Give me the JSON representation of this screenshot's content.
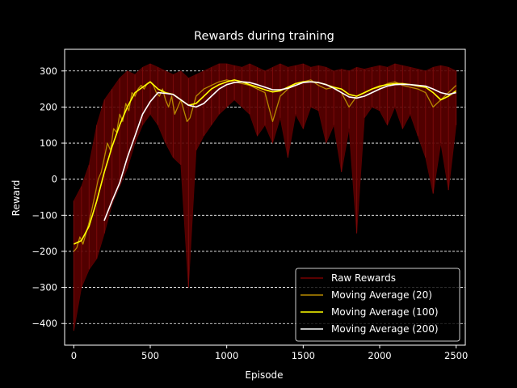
{
  "chart_data": {
    "type": "line",
    "title": "Rewards during training",
    "xlabel": "Episode",
    "ylabel": "Reward",
    "xlim": [
      -60,
      2560
    ],
    "ylim": [
      -460,
      360
    ],
    "x_ticks": [
      0,
      500,
      1000,
      1500,
      2000,
      2500
    ],
    "y_ticks": [
      -400,
      -300,
      -200,
      -100,
      0,
      100,
      200,
      300
    ],
    "grid": "horizontal-dashed",
    "legend_position": "lower-right",
    "colors": {
      "background": "#000000",
      "axes": "#ffffff",
      "raw": "#5a0000",
      "ma20": "#b88a00",
      "ma100": "#ffff00",
      "ma200": "#ffffff"
    },
    "series": [
      {
        "name": "Raw Rewards",
        "kind": "raw",
        "x": [
          0,
          50,
          100,
          150,
          200,
          250,
          300,
          350,
          400,
          450,
          500,
          550,
          600,
          650,
          700,
          750,
          800,
          850,
          900,
          950,
          1000,
          1050,
          1100,
          1150,
          1200,
          1250,
          1300,
          1350,
          1400,
          1450,
          1500,
          1550,
          1600,
          1650,
          1700,
          1750,
          1800,
          1850,
          1900,
          1950,
          2000,
          2050,
          2100,
          2150,
          2200,
          2250,
          2300,
          2350,
          2400,
          2450,
          2500
        ],
        "low": [
          -420,
          -300,
          -250,
          -220,
          -150,
          -70,
          -20,
          30,
          100,
          150,
          180,
          150,
          100,
          60,
          40,
          -300,
          80,
          120,
          150,
          180,
          200,
          220,
          200,
          180,
          120,
          150,
          100,
          170,
          60,
          180,
          140,
          200,
          190,
          100,
          150,
          20,
          140,
          -150,
          170,
          200,
          190,
          150,
          200,
          140,
          180,
          120,
          60,
          -40,
          100,
          -30,
          150
        ],
        "high": [
          -60,
          -20,
          40,
          150,
          220,
          250,
          280,
          300,
          290,
          310,
          320,
          310,
          300,
          290,
          300,
          280,
          290,
          300,
          310,
          320,
          320,
          315,
          310,
          320,
          310,
          300,
          310,
          320,
          310,
          315,
          320,
          310,
          315,
          310,
          300,
          305,
          300,
          310,
          305,
          310,
          315,
          310,
          320,
          315,
          310,
          305,
          300,
          310,
          315,
          310,
          300
        ]
      },
      {
        "name": "Moving Average (20)",
        "kind": "ma20",
        "x": [
          0,
          20,
          40,
          60,
          80,
          100,
          120,
          140,
          160,
          180,
          200,
          220,
          240,
          260,
          280,
          300,
          320,
          340,
          360,
          380,
          400,
          420,
          440,
          460,
          480,
          500,
          520,
          540,
          560,
          580,
          600,
          620,
          640,
          660,
          680,
          700,
          720,
          740,
          760,
          780,
          800,
          850,
          900,
          950,
          1000,
          1050,
          1100,
          1150,
          1200,
          1250,
          1300,
          1350,
          1400,
          1450,
          1500,
          1550,
          1600,
          1650,
          1700,
          1750,
          1800,
          1850,
          1900,
          1950,
          2000,
          2050,
          2100,
          2150,
          2200,
          2250,
          2300,
          2350,
          2400,
          2450,
          2500
        ],
        "y": [
          -200,
          -190,
          -160,
          -180,
          -150,
          -120,
          -80,
          -40,
          0,
          20,
          60,
          100,
          80,
          140,
          130,
          180,
          160,
          210,
          190,
          240,
          230,
          250,
          260,
          250,
          265,
          270,
          260,
          240,
          230,
          250,
          220,
          200,
          230,
          180,
          200,
          220,
          190,
          160,
          170,
          200,
          230,
          250,
          260,
          270,
          275,
          270,
          265,
          260,
          250,
          240,
          160,
          230,
          250,
          265,
          270,
          275,
          260,
          250,
          255,
          240,
          200,
          230,
          240,
          250,
          255,
          265,
          270,
          260,
          255,
          250,
          240,
          200,
          220,
          240,
          260
        ]
      },
      {
        "name": "Moving Average (100)",
        "kind": "ma100",
        "x": [
          0,
          50,
          100,
          150,
          200,
          250,
          300,
          350,
          400,
          450,
          500,
          550,
          600,
          650,
          700,
          750,
          800,
          850,
          900,
          950,
          1000,
          1050,
          1100,
          1150,
          1200,
          1250,
          1300,
          1350,
          1400,
          1450,
          1500,
          1550,
          1600,
          1650,
          1700,
          1750,
          1800,
          1850,
          1900,
          1950,
          2000,
          2050,
          2100,
          2150,
          2200,
          2250,
          2300,
          2350,
          2400,
          2450,
          2500
        ],
        "y": [
          -180,
          -170,
          -130,
          -60,
          20,
          90,
          150,
          200,
          240,
          255,
          270,
          250,
          240,
          235,
          220,
          205,
          210,
          230,
          250,
          262,
          270,
          275,
          270,
          262,
          255,
          248,
          242,
          245,
          255,
          265,
          270,
          270,
          268,
          262,
          255,
          250,
          235,
          230,
          240,
          250,
          258,
          262,
          265,
          265,
          262,
          258,
          255,
          240,
          220,
          230,
          245
        ]
      },
      {
        "name": "Moving Average (200)",
        "kind": "ma200",
        "x": [
          199,
          250,
          300,
          350,
          400,
          450,
          500,
          550,
          600,
          650,
          700,
          750,
          800,
          850,
          900,
          950,
          1000,
          1050,
          1100,
          1150,
          1200,
          1250,
          1300,
          1350,
          1400,
          1450,
          1500,
          1550,
          1600,
          1650,
          1700,
          1750,
          1800,
          1850,
          1900,
          1950,
          2000,
          2050,
          2100,
          2150,
          2200,
          2250,
          2300,
          2350,
          2400,
          2450,
          2500
        ],
        "y": [
          -115,
          -60,
          -10,
          60,
          120,
          180,
          215,
          240,
          238,
          235,
          220,
          205,
          200,
          210,
          230,
          250,
          262,
          268,
          270,
          268,
          262,
          255,
          248,
          248,
          252,
          260,
          268,
          270,
          268,
          262,
          252,
          240,
          228,
          225,
          230,
          240,
          250,
          258,
          262,
          263,
          262,
          260,
          258,
          250,
          240,
          235,
          240
        ]
      }
    ]
  }
}
